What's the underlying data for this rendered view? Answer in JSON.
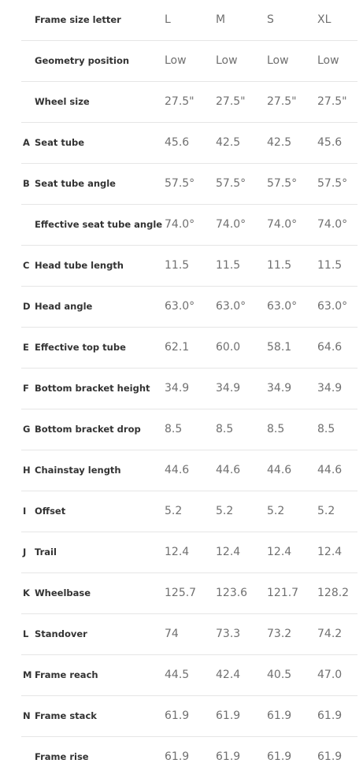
{
  "columns": [
    "L",
    "M",
    "S",
    "XL"
  ],
  "header": {
    "label": "Frame size letter",
    "values": [
      "L",
      "M",
      "S",
      "XL"
    ]
  },
  "rows": [
    {
      "letter": "",
      "label": "Geometry position",
      "values": [
        "Low",
        "Low",
        "Low",
        "Low"
      ]
    },
    {
      "letter": "",
      "label": "Wheel size",
      "values": [
        "27.5\"",
        "27.5\"",
        "27.5\"",
        "27.5\""
      ]
    },
    {
      "letter": "A",
      "label": "Seat tube",
      "values": [
        "45.6",
        "42.5",
        "42.5",
        "45.6"
      ]
    },
    {
      "letter": "B",
      "label": "Seat tube angle",
      "values": [
        "57.5°",
        "57.5°",
        "57.5°",
        "57.5°"
      ]
    },
    {
      "letter": "",
      "label": "Effective seat tube angle",
      "values": [
        "74.0°",
        "74.0°",
        "74.0°",
        "74.0°"
      ]
    },
    {
      "letter": "C",
      "label": "Head tube length",
      "values": [
        "11.5",
        "11.5",
        "11.5",
        "11.5"
      ]
    },
    {
      "letter": "D",
      "label": "Head angle",
      "values": [
        "63.0°",
        "63.0°",
        "63.0°",
        "63.0°"
      ]
    },
    {
      "letter": "E",
      "label": "Effective top tube",
      "values": [
        "62.1",
        "60.0",
        "58.1",
        "64.6"
      ]
    },
    {
      "letter": "F",
      "label": "Bottom bracket height",
      "values": [
        "34.9",
        "34.9",
        "34.9",
        "34.9"
      ]
    },
    {
      "letter": "G",
      "label": "Bottom bracket drop",
      "values": [
        "8.5",
        "8.5",
        "8.5",
        "8.5"
      ]
    },
    {
      "letter": "H",
      "label": "Chainstay length",
      "values": [
        "44.6",
        "44.6",
        "44.6",
        "44.6"
      ]
    },
    {
      "letter": "I",
      "label": "Offset",
      "values": [
        "5.2",
        "5.2",
        "5.2",
        "5.2"
      ]
    },
    {
      "letter": "J",
      "label": "Trail",
      "values": [
        "12.4",
        "12.4",
        "12.4",
        "12.4"
      ]
    },
    {
      "letter": "K",
      "label": "Wheelbase",
      "values": [
        "125.7",
        "123.6",
        "121.7",
        "128.2"
      ]
    },
    {
      "letter": "L",
      "label": "Standover",
      "values": [
        "74",
        "73.3",
        "73.2",
        "74.2"
      ]
    },
    {
      "letter": "M",
      "label": "Frame reach",
      "values": [
        "44.5",
        "42.4",
        "40.5",
        "47.0"
      ]
    },
    {
      "letter": "N",
      "label": "Frame stack",
      "values": [
        "61.9",
        "61.9",
        "61.9",
        "61.9"
      ]
    },
    {
      "letter": "",
      "label": "Frame rise",
      "values": [
        "61.9",
        "61.9",
        "61.9",
        "61.9"
      ]
    }
  ]
}
